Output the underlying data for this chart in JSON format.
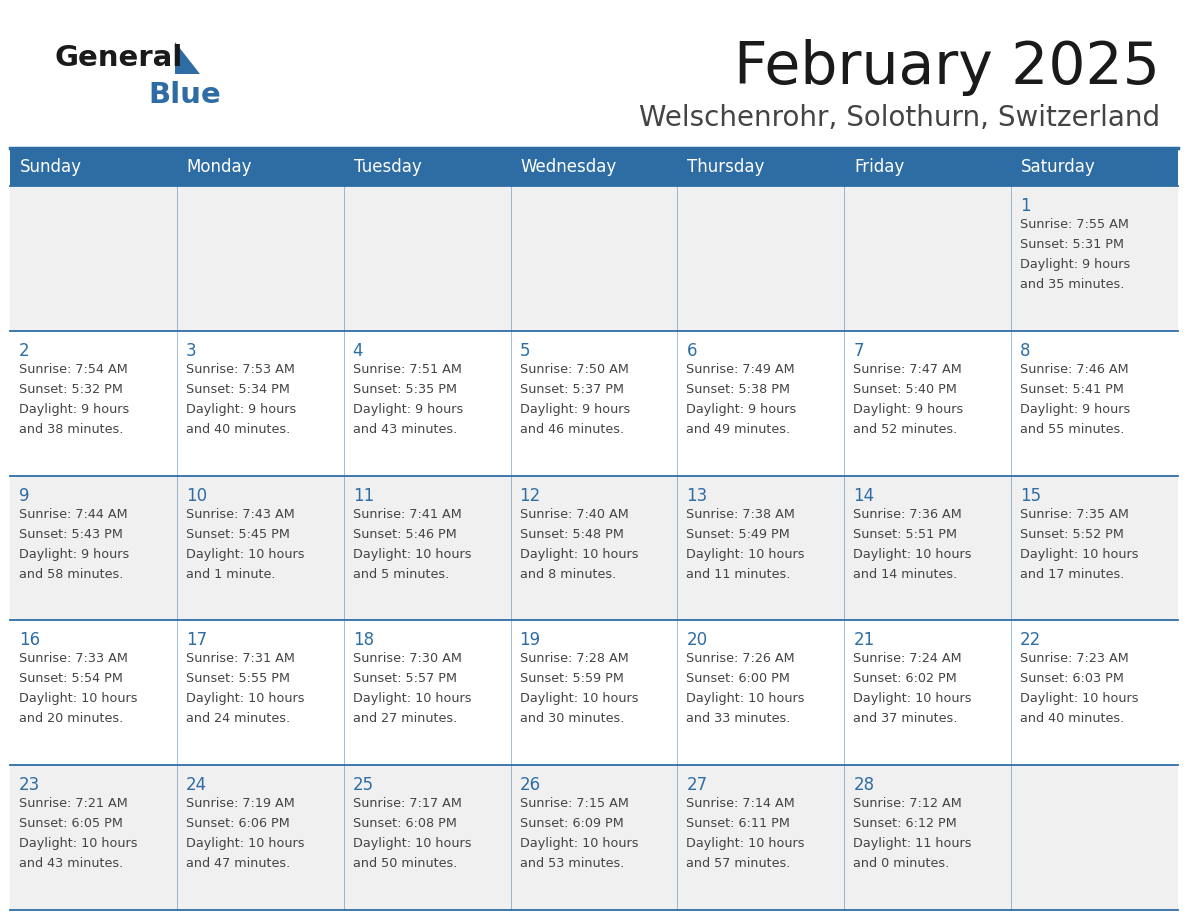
{
  "title": "February 2025",
  "subtitle": "Welschenrohr, Solothurn, Switzerland",
  "header_bg": "#2E6DA4",
  "header_text_color": "#FFFFFF",
  "cell_bg_odd": "#F0F0F0",
  "cell_bg_even": "#FFFFFF",
  "day_number_color": "#2E6DA4",
  "info_text_color": "#444444",
  "border_color": "#2E6DA4",
  "days_of_week": [
    "Sunday",
    "Monday",
    "Tuesday",
    "Wednesday",
    "Thursday",
    "Friday",
    "Saturday"
  ],
  "calendar": [
    [
      {
        "day": null,
        "info": ""
      },
      {
        "day": null,
        "info": ""
      },
      {
        "day": null,
        "info": ""
      },
      {
        "day": null,
        "info": ""
      },
      {
        "day": null,
        "info": ""
      },
      {
        "day": null,
        "info": ""
      },
      {
        "day": 1,
        "info": "Sunrise: 7:55 AM\nSunset: 5:31 PM\nDaylight: 9 hours\nand 35 minutes."
      }
    ],
    [
      {
        "day": 2,
        "info": "Sunrise: 7:54 AM\nSunset: 5:32 PM\nDaylight: 9 hours\nand 38 minutes."
      },
      {
        "day": 3,
        "info": "Sunrise: 7:53 AM\nSunset: 5:34 PM\nDaylight: 9 hours\nand 40 minutes."
      },
      {
        "day": 4,
        "info": "Sunrise: 7:51 AM\nSunset: 5:35 PM\nDaylight: 9 hours\nand 43 minutes."
      },
      {
        "day": 5,
        "info": "Sunrise: 7:50 AM\nSunset: 5:37 PM\nDaylight: 9 hours\nand 46 minutes."
      },
      {
        "day": 6,
        "info": "Sunrise: 7:49 AM\nSunset: 5:38 PM\nDaylight: 9 hours\nand 49 minutes."
      },
      {
        "day": 7,
        "info": "Sunrise: 7:47 AM\nSunset: 5:40 PM\nDaylight: 9 hours\nand 52 minutes."
      },
      {
        "day": 8,
        "info": "Sunrise: 7:46 AM\nSunset: 5:41 PM\nDaylight: 9 hours\nand 55 minutes."
      }
    ],
    [
      {
        "day": 9,
        "info": "Sunrise: 7:44 AM\nSunset: 5:43 PM\nDaylight: 9 hours\nand 58 minutes."
      },
      {
        "day": 10,
        "info": "Sunrise: 7:43 AM\nSunset: 5:45 PM\nDaylight: 10 hours\nand 1 minute."
      },
      {
        "day": 11,
        "info": "Sunrise: 7:41 AM\nSunset: 5:46 PM\nDaylight: 10 hours\nand 5 minutes."
      },
      {
        "day": 12,
        "info": "Sunrise: 7:40 AM\nSunset: 5:48 PM\nDaylight: 10 hours\nand 8 minutes."
      },
      {
        "day": 13,
        "info": "Sunrise: 7:38 AM\nSunset: 5:49 PM\nDaylight: 10 hours\nand 11 minutes."
      },
      {
        "day": 14,
        "info": "Sunrise: 7:36 AM\nSunset: 5:51 PM\nDaylight: 10 hours\nand 14 minutes."
      },
      {
        "day": 15,
        "info": "Sunrise: 7:35 AM\nSunset: 5:52 PM\nDaylight: 10 hours\nand 17 minutes."
      }
    ],
    [
      {
        "day": 16,
        "info": "Sunrise: 7:33 AM\nSunset: 5:54 PM\nDaylight: 10 hours\nand 20 minutes."
      },
      {
        "day": 17,
        "info": "Sunrise: 7:31 AM\nSunset: 5:55 PM\nDaylight: 10 hours\nand 24 minutes."
      },
      {
        "day": 18,
        "info": "Sunrise: 7:30 AM\nSunset: 5:57 PM\nDaylight: 10 hours\nand 27 minutes."
      },
      {
        "day": 19,
        "info": "Sunrise: 7:28 AM\nSunset: 5:59 PM\nDaylight: 10 hours\nand 30 minutes."
      },
      {
        "day": 20,
        "info": "Sunrise: 7:26 AM\nSunset: 6:00 PM\nDaylight: 10 hours\nand 33 minutes."
      },
      {
        "day": 21,
        "info": "Sunrise: 7:24 AM\nSunset: 6:02 PM\nDaylight: 10 hours\nand 37 minutes."
      },
      {
        "day": 22,
        "info": "Sunrise: 7:23 AM\nSunset: 6:03 PM\nDaylight: 10 hours\nand 40 minutes."
      }
    ],
    [
      {
        "day": 23,
        "info": "Sunrise: 7:21 AM\nSunset: 6:05 PM\nDaylight: 10 hours\nand 43 minutes."
      },
      {
        "day": 24,
        "info": "Sunrise: 7:19 AM\nSunset: 6:06 PM\nDaylight: 10 hours\nand 47 minutes."
      },
      {
        "day": 25,
        "info": "Sunrise: 7:17 AM\nSunset: 6:08 PM\nDaylight: 10 hours\nand 50 minutes."
      },
      {
        "day": 26,
        "info": "Sunrise: 7:15 AM\nSunset: 6:09 PM\nDaylight: 10 hours\nand 53 minutes."
      },
      {
        "day": 27,
        "info": "Sunrise: 7:14 AM\nSunset: 6:11 PM\nDaylight: 10 hours\nand 57 minutes."
      },
      {
        "day": 28,
        "info": "Sunrise: 7:12 AM\nSunset: 6:12 PM\nDaylight: 11 hours\nand 0 minutes."
      },
      {
        "day": null,
        "info": ""
      }
    ]
  ]
}
